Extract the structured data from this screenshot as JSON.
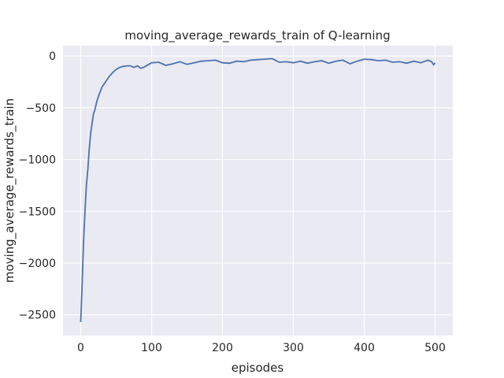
{
  "chart_data": {
    "type": "line",
    "title": "moving_average_rewards_train of Q-learning",
    "xlabel": "episodes",
    "ylabel": "moving_average_rewards_train",
    "xlim": [
      -25,
      525
    ],
    "ylim": [
      -2700,
      100
    ],
    "xticks": [
      0,
      100,
      200,
      300,
      400,
      500
    ],
    "yticks": [
      0,
      -500,
      -1000,
      -1500,
      -2000,
      -2500
    ],
    "xtick_labels": [
      "0",
      "100",
      "200",
      "300",
      "400",
      "500"
    ],
    "ytick_labels": [
      "0",
      "−500",
      "−1000",
      "−1500",
      "−2000",
      "−2500"
    ],
    "grid": true,
    "background": "#eaeaf2",
    "line_color": "#4c72b0",
    "x": [
      0,
      2,
      4,
      6,
      8,
      10,
      12,
      14,
      16,
      18,
      20,
      23,
      26,
      30,
      35,
      40,
      45,
      50,
      55,
      60,
      65,
      70,
      75,
      80,
      85,
      90,
      95,
      100,
      110,
      120,
      130,
      140,
      150,
      160,
      170,
      180,
      190,
      200,
      210,
      220,
      230,
      240,
      250,
      260,
      270,
      280,
      290,
      300,
      310,
      320,
      330,
      340,
      350,
      360,
      370,
      380,
      390,
      400,
      410,
      420,
      430,
      440,
      450,
      460,
      470,
      480,
      490,
      495,
      498,
      500
    ],
    "y": [
      -2570,
      -2200,
      -1800,
      -1500,
      -1250,
      -1100,
      -900,
      -750,
      -650,
      -560,
      -520,
      -430,
      -370,
      -300,
      -250,
      -200,
      -160,
      -130,
      -110,
      -100,
      -95,
      -95,
      -110,
      -95,
      -120,
      -105,
      -85,
      -65,
      -60,
      -90,
      -75,
      -55,
      -80,
      -65,
      -50,
      -45,
      -40,
      -65,
      -70,
      -50,
      -55,
      -40,
      -35,
      -30,
      -25,
      -60,
      -55,
      -65,
      -50,
      -70,
      -55,
      -45,
      -70,
      -50,
      -40,
      -75,
      -50,
      -30,
      -35,
      -45,
      -40,
      -60,
      -55,
      -70,
      -50,
      -65,
      -40,
      -55,
      -85,
      -65
    ]
  }
}
